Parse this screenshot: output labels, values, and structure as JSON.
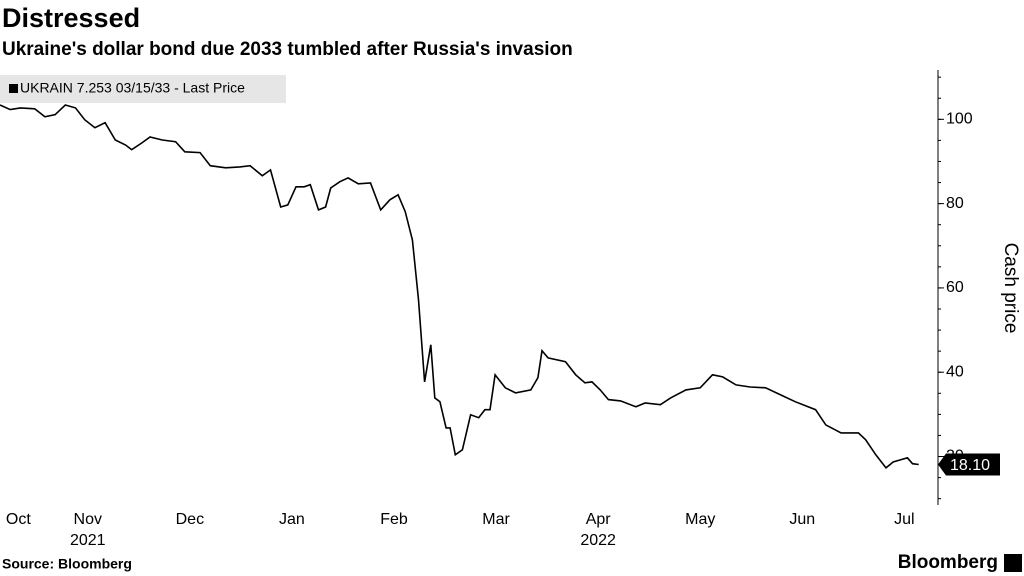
{
  "chart_data": {
    "type": "line",
    "title": "Distressed",
    "subtitle": "Ukraine's dollar bond due 2033 tumbled after Russia's invasion",
    "y_axis_label": "Cash price",
    "source": "Source: Bloomberg",
    "brand": "Bloomberg",
    "x": [
      0.14,
      0.24,
      0.34,
      0.48,
      0.58,
      0.68,
      0.78,
      0.88,
      0.97,
      1.07,
      1.17,
      1.27,
      1.37,
      1.43,
      1.53,
      1.61,
      1.73,
      1.86,
      1.95,
      2.1,
      2.2,
      2.35,
      2.49,
      2.59,
      2.71,
      2.79,
      2.89,
      2.96,
      3.04,
      3.12,
      3.18,
      3.26,
      3.33,
      3.38,
      3.47,
      3.55,
      3.65,
      3.77,
      3.87,
      3.96,
      4.04,
      4.11,
      4.18,
      4.24,
      4.3,
      4.36,
      4.4,
      4.45,
      4.51,
      4.55,
      4.6,
      4.67,
      4.75,
      4.83,
      4.89,
      4.94,
      4.99,
      5.09,
      5.19,
      5.34,
      5.41,
      5.45,
      5.51,
      5.68,
      5.78,
      5.87,
      5.94,
      6.02,
      6.1,
      6.22,
      6.37,
      6.46,
      6.61,
      6.71,
      6.86,
      7.0,
      7.12,
      7.22,
      7.35,
      7.49,
      7.64,
      7.79,
      7.93,
      8.13,
      8.23,
      8.38,
      8.55,
      8.62,
      8.72,
      8.82,
      8.89,
      8.96,
      9.03,
      9.08,
      9.14
    ],
    "series": [
      {
        "name": "UKRAIN 7.253 03/15/33 - Last Price",
        "color": "#000000",
        "values": [
          103.4,
          102.3,
          102.7,
          102.5,
          100.6,
          101.1,
          103.4,
          102.7,
          99.9,
          98.0,
          99.2,
          95.1,
          93.9,
          92.8,
          94.4,
          95.8,
          95.1,
          94.7,
          92.3,
          92.1,
          89.0,
          88.5,
          88.7,
          89.0,
          86.6,
          88.0,
          79.2,
          79.7,
          84.0,
          84.0,
          84.5,
          78.5,
          79.2,
          83.7,
          85.2,
          86.1,
          84.7,
          84.9,
          78.5,
          80.9,
          82.1,
          78.1,
          71.4,
          57.2,
          37.7,
          46.5,
          33.9,
          33.0,
          26.8,
          26.8,
          20.4,
          21.6,
          29.9,
          29.2,
          31.1,
          31.1,
          39.4,
          36.3,
          35.1,
          35.8,
          38.7,
          45.1,
          43.4,
          42.5,
          39.4,
          37.5,
          37.7,
          35.8,
          33.5,
          33.2,
          31.8,
          32.7,
          32.3,
          33.9,
          35.8,
          36.3,
          39.4,
          38.9,
          37.0,
          36.5,
          36.3,
          34.6,
          33.0,
          31.1,
          27.5,
          25.6,
          25.6,
          24.0,
          20.4,
          17.3,
          18.7,
          19.2,
          19.7,
          18.3,
          18.1
        ],
        "value_labels": [
          null,
          null,
          null,
          null,
          null,
          null,
          null,
          null,
          null,
          null,
          null,
          null,
          null,
          null,
          null,
          null,
          null,
          null,
          null,
          null,
          null,
          null,
          null,
          null,
          null,
          null,
          null,
          null,
          null,
          null,
          null,
          null,
          null,
          null,
          null,
          null,
          null,
          null,
          null,
          null,
          null,
          null,
          null,
          null,
          null,
          null,
          null,
          null,
          null,
          null,
          null,
          null,
          null,
          null,
          null,
          null,
          null,
          null,
          null,
          null,
          null,
          null,
          null,
          null,
          null,
          null,
          null,
          null,
          null,
          null,
          null,
          null,
          null,
          null,
          null,
          null,
          null,
          null,
          null,
          null,
          null,
          null,
          null,
          null,
          null,
          null,
          null,
          null,
          null,
          null,
          null,
          null,
          null,
          null,
          "18.10"
        ]
      }
    ],
    "xlim": [
      0.14,
      9.3
    ],
    "xticks": [
      {
        "value": 0.32,
        "label": "Oct"
      },
      {
        "value": 1,
        "label": "Nov"
      },
      {
        "value": 2,
        "label": "Dec"
      },
      {
        "value": 3,
        "label": "Jan"
      },
      {
        "value": 4,
        "label": "Feb"
      },
      {
        "value": 5,
        "label": "Mar"
      },
      {
        "value": 6,
        "label": "Apr"
      },
      {
        "value": 7,
        "label": "May"
      },
      {
        "value": 8,
        "label": "Jun"
      },
      {
        "value": 9,
        "label": "Jul"
      }
    ],
    "year_ticks": [
      {
        "value": 1,
        "label": "2021"
      },
      {
        "value": 6,
        "label": "2022"
      }
    ],
    "ylim": [
      8.5,
      111.7
    ],
    "yticks": [
      20,
      40,
      60,
      80,
      100
    ],
    "y_axis_side": "right",
    "grid": false
  }
}
